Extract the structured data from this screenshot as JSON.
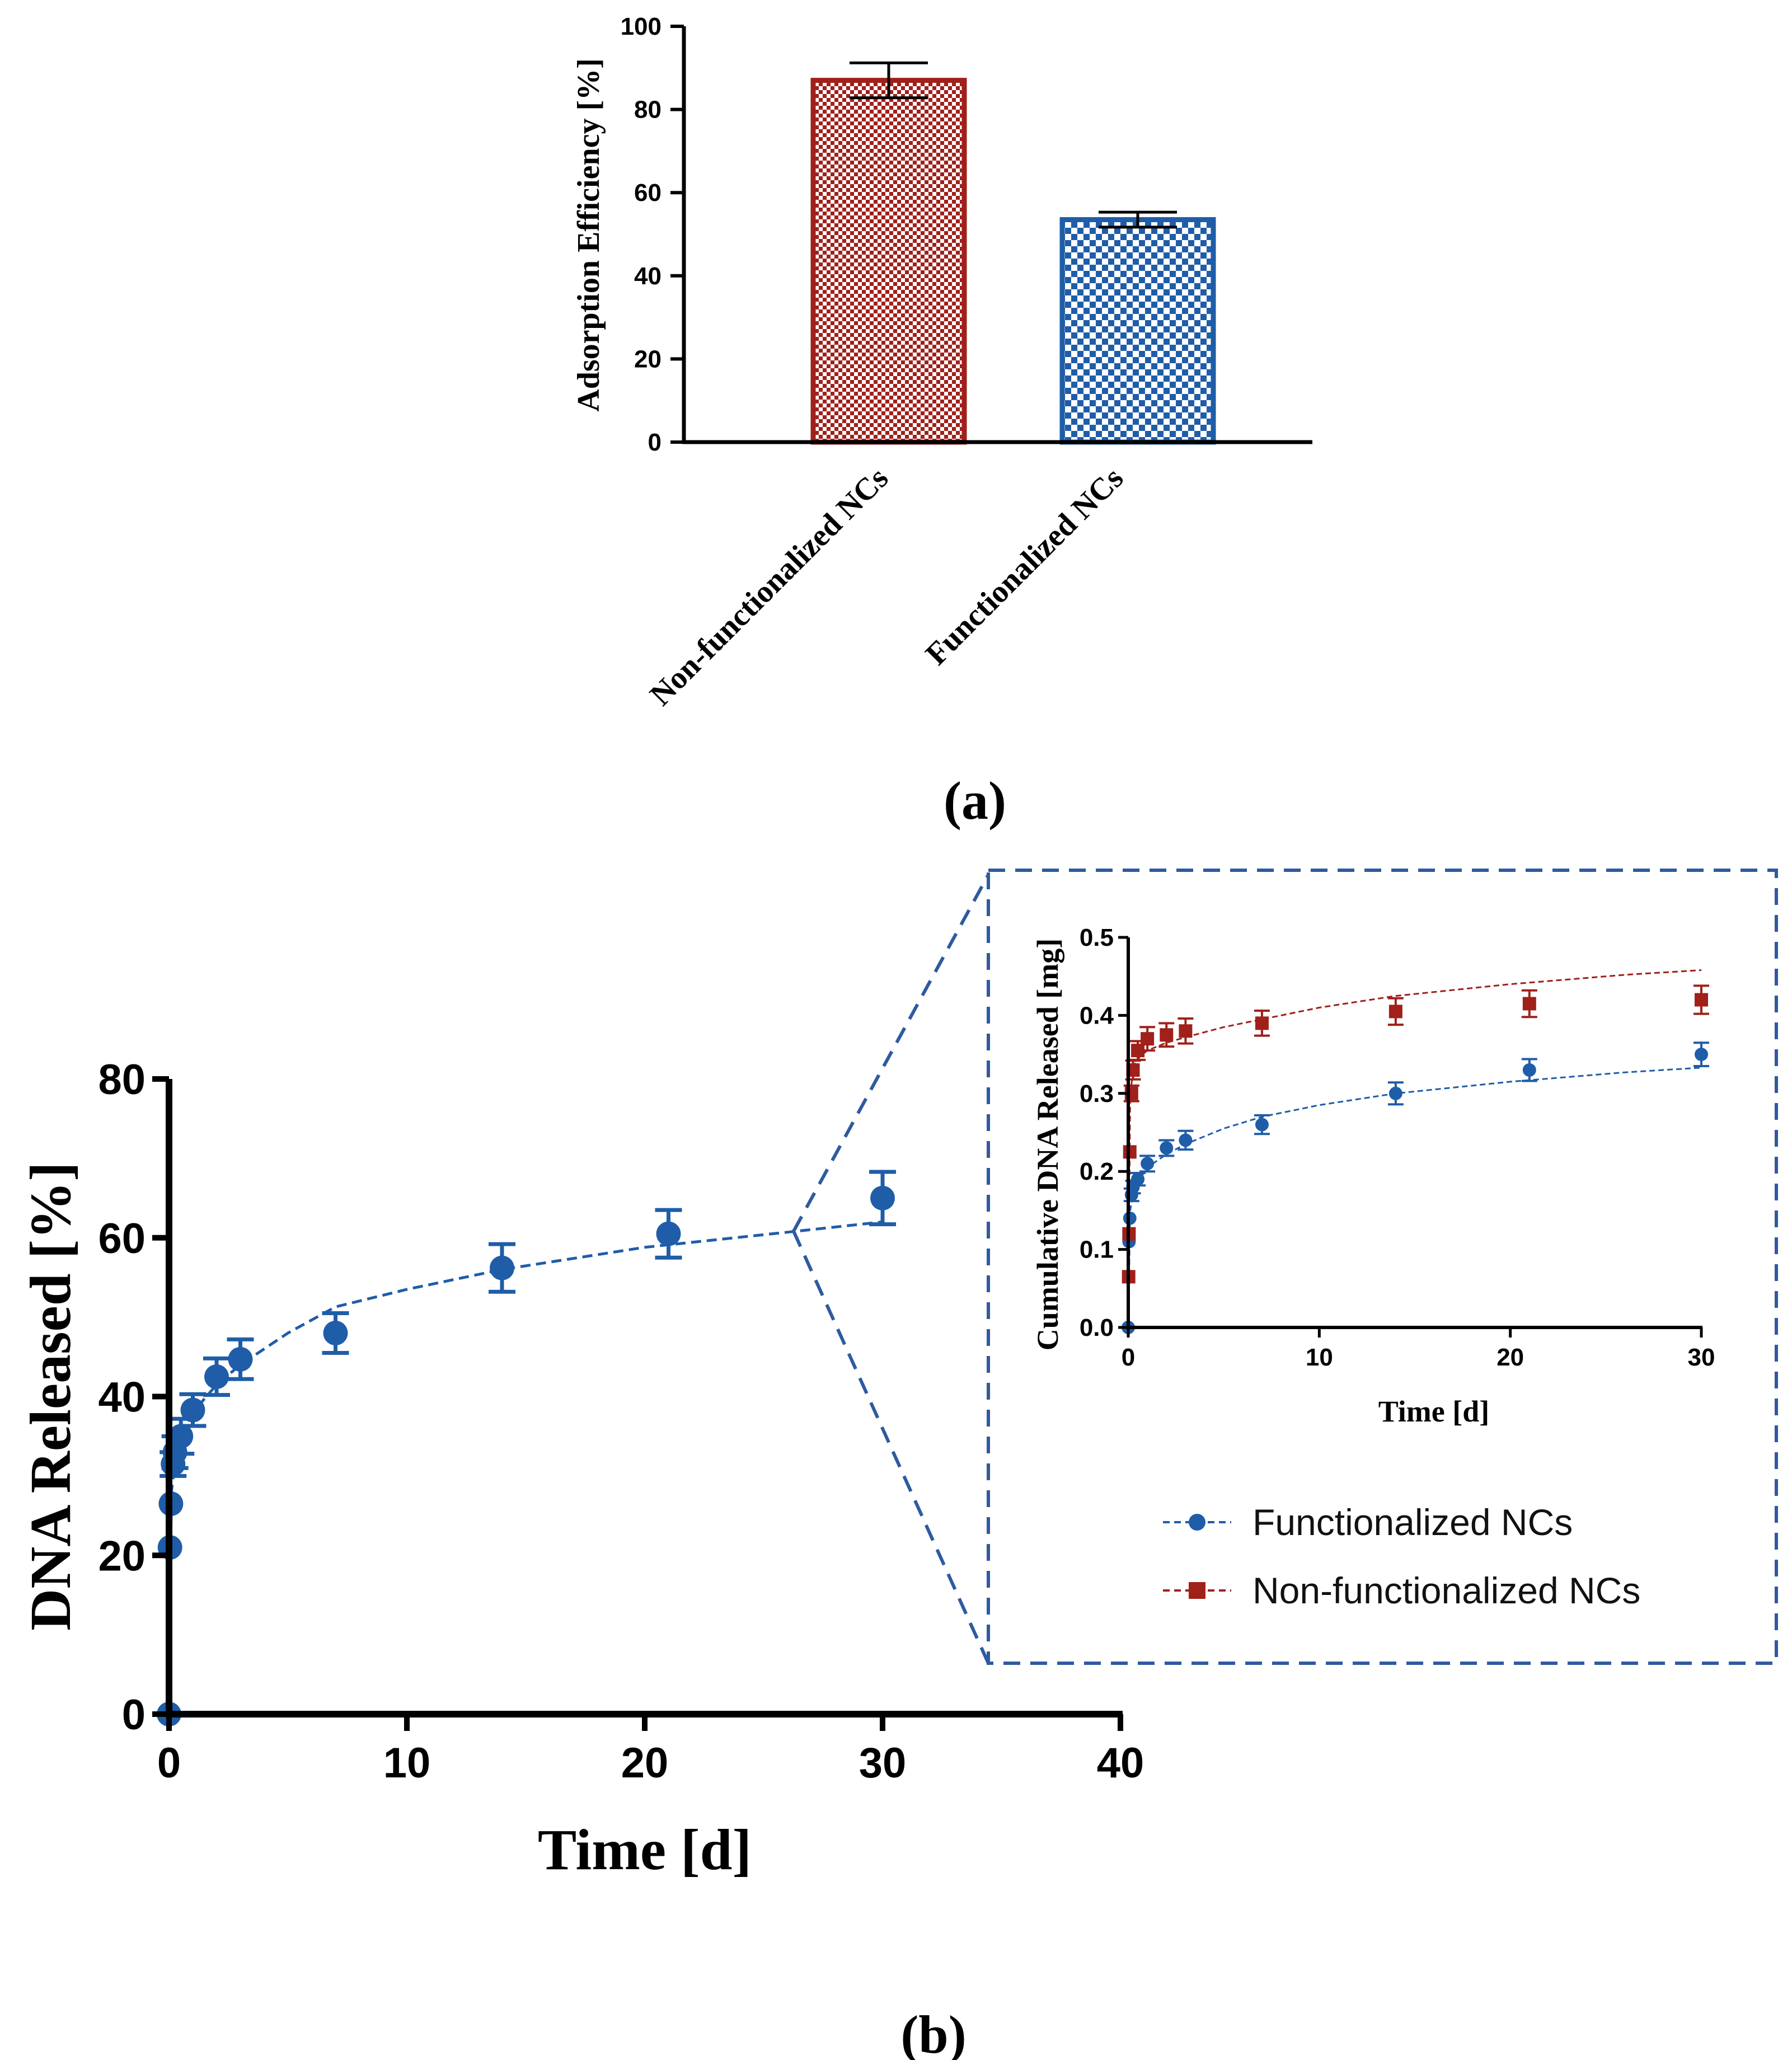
{
  "panels": {
    "a": "(a)",
    "b": "(b)"
  },
  "colors": {
    "blue": "#1f5da8",
    "red": "#a0201a",
    "zoom_box": "#2e5aa0"
  },
  "legend": {
    "functionalized": "Functionalized NCs",
    "non_functionalized": "Non-functionalized NCs"
  },
  "chart_data": [
    {
      "id": "panel-a",
      "type": "bar",
      "ylabel": "Adsorption Efficiency [%]",
      "xlabel": "",
      "ylim": [
        0,
        100
      ],
      "yticks": [
        0,
        20,
        40,
        60,
        80,
        100
      ],
      "categories": [
        "Non-functionalized NCs",
        "Functionalized NCs"
      ],
      "values": [
        87,
        53.5
      ],
      "errors": [
        4.2,
        1.8
      ],
      "bar_colors": [
        "#a0201a",
        "#1f5da8"
      ],
      "pattern": "checkerboard"
    },
    {
      "id": "panel-b",
      "type": "scatter",
      "xlabel": "Time [d]",
      "ylabel": "DNA Released [%]",
      "xlim": [
        0,
        40
      ],
      "ylim": [
        0,
        80
      ],
      "xticks": [
        0,
        10,
        20,
        30,
        40
      ],
      "yticks": [
        0,
        20,
        40,
        60,
        80
      ],
      "series": [
        {
          "color": "#1f5da8",
          "marker": "circle",
          "x": [
            0,
            0.04,
            0.08,
            0.17,
            0.25,
            0.5,
            1,
            2,
            3,
            7,
            14,
            21,
            30
          ],
          "y": [
            0,
            21,
            26.5,
            31.5,
            33,
            35,
            38.3,
            42.5,
            44.7,
            48,
            56.2,
            60.5,
            65
          ],
          "err": [
            0,
            0,
            0,
            1.5,
            2,
            2.2,
            2,
            2.3,
            2.5,
            2.5,
            3,
            3,
            3.3
          ]
        }
      ],
      "fit": {
        "style": "dashed",
        "x": [
          0,
          0.1,
          0.3,
          0.6,
          1,
          2,
          3,
          5,
          7,
          10,
          14,
          20,
          26,
          30
        ],
        "y": [
          0,
          28,
          33,
          35.5,
          38,
          41.5,
          44,
          48,
          51.3,
          53.5,
          56,
          58.8,
          60.7,
          62
        ]
      }
    },
    {
      "id": "panel-b-inset",
      "type": "scatter",
      "xlabel": "Time [d]",
      "ylabel": "Cumulative DNA Released [mg]",
      "xlim": [
        0,
        30
      ],
      "ylim": [
        0,
        0.5
      ],
      "xticks": [
        0,
        10,
        20,
        30
      ],
      "yticks": [
        "0.0",
        "0.1",
        "0.2",
        "0.3",
        "0.4",
        "0.5"
      ],
      "series": [
        {
          "name": "Functionalized NCs",
          "color": "#1f5da8",
          "marker": "circle",
          "x": [
            0,
            0.04,
            0.08,
            0.17,
            0.25,
            0.5,
            1,
            2,
            3,
            7,
            14,
            21,
            30
          ],
          "y": [
            0,
            0.11,
            0.14,
            0.17,
            0.18,
            0.19,
            0.21,
            0.23,
            0.24,
            0.26,
            0.3,
            0.33,
            0.35
          ],
          "err": [
            0,
            0,
            0,
            0.008,
            0.008,
            0.008,
            0.01,
            0.01,
            0.012,
            0.012,
            0.014,
            0.014,
            0.015
          ]
        },
        {
          "name": "Non-functionalized NCs",
          "color": "#a0201a",
          "marker": "square",
          "x": [
            0.02,
            0.04,
            0.08,
            0.17,
            0.25,
            0.5,
            1,
            2,
            3,
            7,
            14,
            21,
            30
          ],
          "y": [
            0.065,
            0.12,
            0.225,
            0.3,
            0.33,
            0.355,
            0.37,
            0.375,
            0.38,
            0.39,
            0.405,
            0.415,
            0.42
          ],
          "err": [
            0,
            0,
            0,
            0.01,
            0.012,
            0.012,
            0.015,
            0.015,
            0.016,
            0.016,
            0.017,
            0.017,
            0.018
          ]
        }
      ],
      "fits": [
        {
          "color": "#1f5da8",
          "x": [
            0,
            0.1,
            0.3,
            0.6,
            1,
            2,
            3,
            5,
            7,
            10,
            14,
            20,
            26,
            30
          ],
          "y": [
            0,
            0.15,
            0.175,
            0.19,
            0.205,
            0.222,
            0.235,
            0.255,
            0.27,
            0.285,
            0.3,
            0.315,
            0.327,
            0.333
          ]
        },
        {
          "color": "#a0201a",
          "x": [
            0,
            0.1,
            0.3,
            0.6,
            1,
            2,
            3,
            5,
            7,
            10,
            14,
            20,
            26,
            30
          ],
          "y": [
            0,
            0.3,
            0.335,
            0.347,
            0.355,
            0.365,
            0.372,
            0.385,
            0.395,
            0.41,
            0.425,
            0.44,
            0.452,
            0.458
          ]
        }
      ]
    }
  ]
}
